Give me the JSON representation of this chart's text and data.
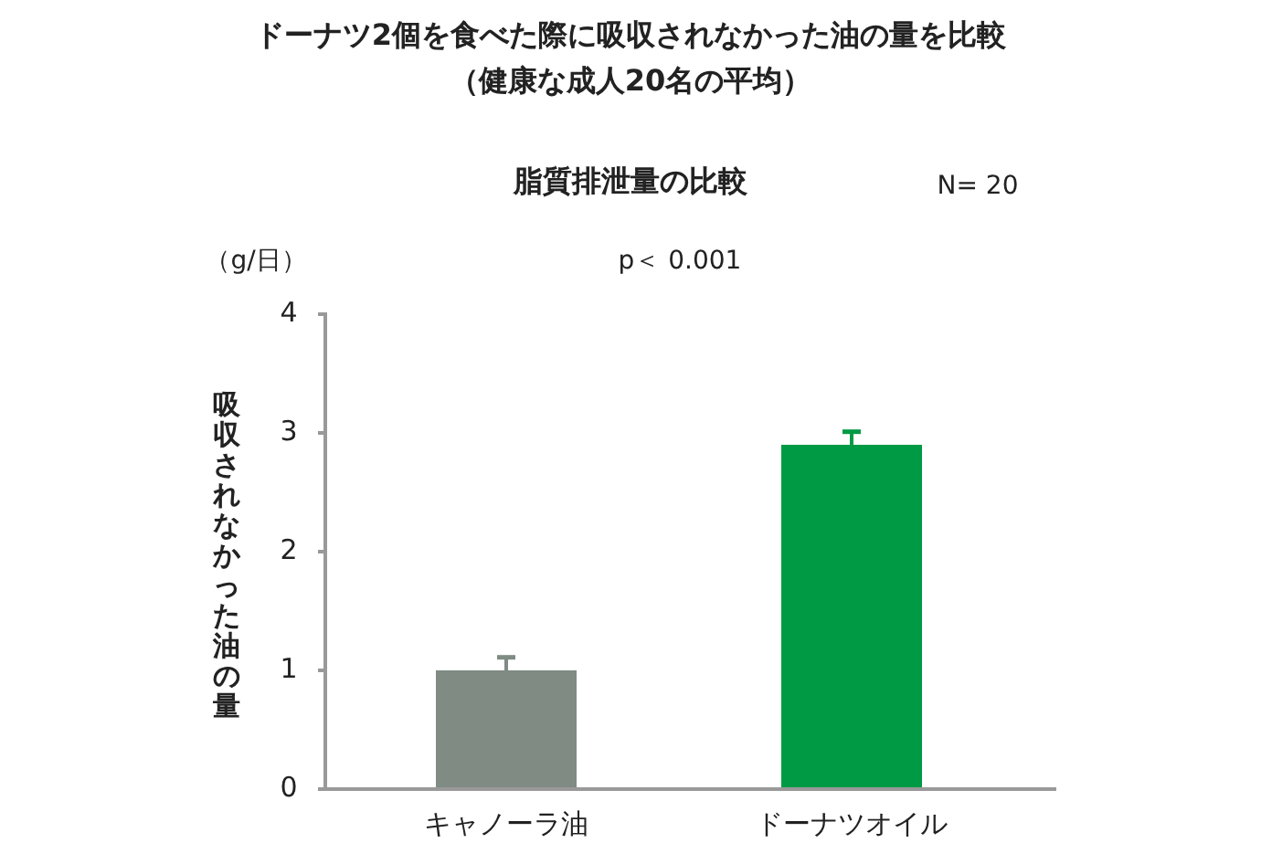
{
  "chart_data": {
    "type": "bar",
    "title": "ドーナツ2個を食べた際に吸収されなかった油の量を比較",
    "subtitle": "（健康な成人20名の平均）",
    "ylabel": "吸収されなかった油の量",
    "annotations": [
      "脂質排泄量の比較",
      "N= 20",
      "（g/日）",
      "p＜ 0.001"
    ],
    "categories": [
      "キャノーラ油",
      "ドーナツオイル"
    ],
    "values": [
      1.0,
      2.9
    ],
    "colors": [
      "#7f8b83",
      "#009a44"
    ],
    "errors": [
      [
        1.0,
        1.11
      ],
      [
        2.9,
        3.01
      ]
    ],
    "ylim": [
      0,
      4
    ],
    "yticks": [
      0,
      1,
      2,
      3,
      4
    ],
    "grid": false
  }
}
